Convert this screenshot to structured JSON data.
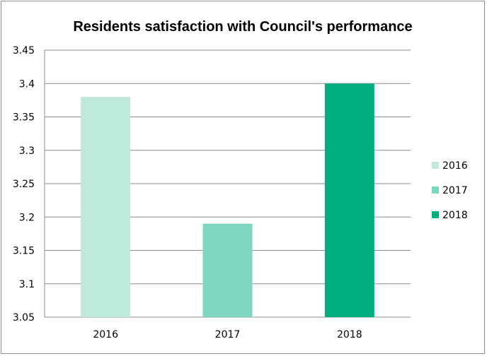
{
  "chart_data": {
    "type": "bar",
    "title": "Residents satisfaction with Council's performance",
    "categories": [
      "2016",
      "2017",
      "2018"
    ],
    "series": [
      {
        "name": "2016",
        "values": [
          3.38,
          null,
          null
        ],
        "color": "#bdeadb"
      },
      {
        "name": "2017",
        "values": [
          null,
          3.19,
          null
        ],
        "color": "#7dd6bf"
      },
      {
        "name": "2018",
        "values": [
          null,
          null,
          3.4
        ],
        "color": "#00ad7f"
      }
    ],
    "values": [
      3.38,
      3.19,
      3.4
    ],
    "xlabel": "",
    "ylabel": "",
    "ylim": [
      3.05,
      3.45
    ],
    "yticks": [
      "3.05",
      "3.1",
      "3.15",
      "3.2",
      "3.25",
      "3.3",
      "3.35",
      "3.4",
      "3.45"
    ],
    "grid": true,
    "legend_position": "right",
    "gridline_color": "#8c8c8c"
  }
}
